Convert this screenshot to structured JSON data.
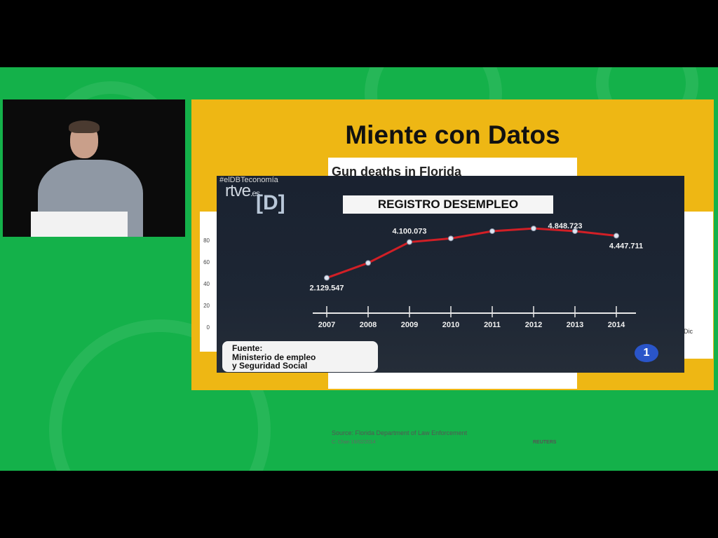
{
  "slide": {
    "title": "Miente con Datos"
  },
  "background_chart": {
    "title": "Gun deaths in Florida",
    "y_ticks": [
      "80",
      "60",
      "40",
      "20",
      "0"
    ],
    "right_tick": "Dic",
    "source": "Source: Florida Department of Law Enforcement",
    "credit": "C. Chan 16/02/2014",
    "publisher": "REUTERS"
  },
  "tv": {
    "hashtag": "#elDBTeconomía",
    "channel_logo": "rtve",
    "channel_logo_suffix": ".es",
    "program_logo": "[D]",
    "network_logo": "1",
    "source_label": "Fuente:",
    "source_line1": "Ministerio de empleo",
    "source_line2": "y Seguridad Social"
  },
  "colors": {
    "stage_green": "#14b14a",
    "slide_yellow": "#eeb714",
    "line_red": "#d11f26"
  },
  "chart_data": {
    "type": "line",
    "title": "REGISTRO DESEMPLEO",
    "x": [
      "2007",
      "2008",
      "2009",
      "2010",
      "2011",
      "2012",
      "2013",
      "2014"
    ],
    "values": [
      2129547,
      2950000,
      4100073,
      4300000,
      4700000,
      4848723,
      4700000,
      4447711
    ],
    "data_labels": {
      "0": "2.129.547",
      "2": "4.100.073",
      "5": "4.848.723",
      "7": "4.447.711"
    },
    "ylim": [
      1500000,
      5200000
    ],
    "grid": false,
    "xlabel": "",
    "ylabel": ""
  }
}
